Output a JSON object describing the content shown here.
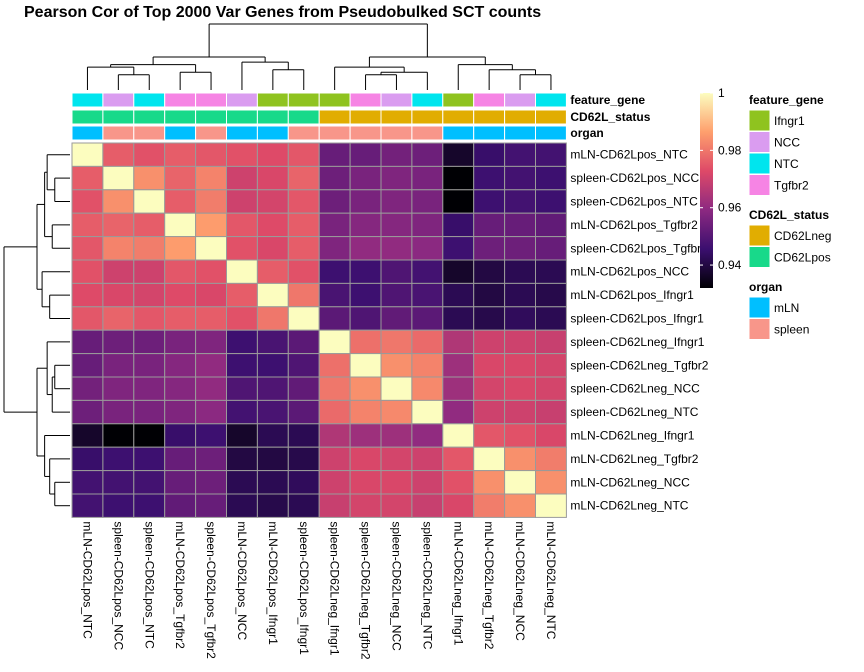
{
  "chart_data": {
    "type": "heatmap",
    "title": "Pearson Cor of Top 2000 Var Genes from Pseudobulked SCT counts",
    "samples": [
      "mLN-CD62Lpos_NTC",
      "spleen-CD62Lpos_NCC",
      "spleen-CD62Lpos_NTC",
      "mLN-CD62Lpos_Tgfbr2",
      "spleen-CD62Lpos_Tgfbr2",
      "mLN-CD62Lpos_NCC",
      "mLN-CD62Lpos_Ifngr1",
      "spleen-CD62Lpos_Ifngr1",
      "spleen-CD62Lneg_Ifngr1",
      "spleen-CD62Lneg_Tgfbr2",
      "spleen-CD62Lneg_NCC",
      "spleen-CD62Lneg_NTC",
      "mLN-CD62Lneg_Ifngr1",
      "mLN-CD62Lneg_Tgfbr2",
      "mLN-CD62Lneg_NCC",
      "mLN-CD62Lneg_NTC"
    ],
    "values": [
      [
        1.0,
        0.976,
        0.974,
        0.976,
        0.975,
        0.974,
        0.973,
        0.975,
        0.953,
        0.953,
        0.955,
        0.954,
        0.937,
        0.945,
        0.947,
        0.947
      ],
      [
        0.976,
        1.0,
        0.984,
        0.977,
        0.982,
        0.97,
        0.972,
        0.977,
        0.954,
        0.956,
        0.957,
        0.956,
        0.932,
        0.946,
        0.947,
        0.946
      ],
      [
        0.974,
        0.984,
        1.0,
        0.976,
        0.981,
        0.97,
        0.971,
        0.975,
        0.954,
        0.956,
        0.957,
        0.956,
        0.932,
        0.946,
        0.947,
        0.946
      ],
      [
        0.976,
        0.977,
        0.976,
        1.0,
        0.986,
        0.975,
        0.973,
        0.976,
        0.956,
        0.958,
        0.958,
        0.957,
        0.945,
        0.953,
        0.953,
        0.952
      ],
      [
        0.975,
        0.982,
        0.981,
        0.986,
        1.0,
        0.974,
        0.972,
        0.976,
        0.957,
        0.96,
        0.96,
        0.959,
        0.946,
        0.954,
        0.954,
        0.953
      ],
      [
        0.974,
        0.97,
        0.97,
        0.975,
        0.974,
        1.0,
        0.976,
        0.974,
        0.946,
        0.946,
        0.949,
        0.947,
        0.937,
        0.94,
        0.942,
        0.942
      ],
      [
        0.973,
        0.972,
        0.971,
        0.973,
        0.972,
        0.976,
        1.0,
        0.98,
        0.948,
        0.946,
        0.949,
        0.948,
        0.942,
        0.94,
        0.942,
        0.941
      ],
      [
        0.975,
        0.977,
        0.975,
        0.976,
        0.976,
        0.974,
        0.98,
        1.0,
        0.951,
        0.949,
        0.952,
        0.951,
        0.942,
        0.941,
        0.943,
        0.942
      ],
      [
        0.953,
        0.954,
        0.954,
        0.956,
        0.957,
        0.946,
        0.948,
        0.951,
        1.0,
        0.979,
        0.98,
        0.978,
        0.965,
        0.97,
        0.97,
        0.969
      ],
      [
        0.953,
        0.956,
        0.956,
        0.958,
        0.96,
        0.946,
        0.946,
        0.949,
        0.979,
        1.0,
        0.984,
        0.982,
        0.962,
        0.972,
        0.972,
        0.971
      ],
      [
        0.955,
        0.957,
        0.957,
        0.958,
        0.96,
        0.949,
        0.949,
        0.952,
        0.98,
        0.984,
        1.0,
        0.983,
        0.962,
        0.971,
        0.972,
        0.971
      ],
      [
        0.954,
        0.956,
        0.956,
        0.957,
        0.959,
        0.947,
        0.948,
        0.951,
        0.978,
        0.982,
        0.983,
        1.0,
        0.96,
        0.97,
        0.97,
        0.969
      ],
      [
        0.937,
        0.932,
        0.932,
        0.945,
        0.946,
        0.937,
        0.942,
        0.942,
        0.965,
        0.962,
        0.962,
        0.96,
        1.0,
        0.975,
        0.974,
        0.972
      ],
      [
        0.945,
        0.946,
        0.946,
        0.953,
        0.954,
        0.94,
        0.94,
        0.941,
        0.97,
        0.972,
        0.971,
        0.97,
        0.975,
        1.0,
        0.984,
        0.981
      ],
      [
        0.947,
        0.947,
        0.947,
        0.953,
        0.954,
        0.942,
        0.942,
        0.943,
        0.97,
        0.972,
        0.972,
        0.97,
        0.974,
        0.984,
        1.0,
        0.984
      ],
      [
        0.947,
        0.946,
        0.946,
        0.952,
        0.953,
        0.942,
        0.941,
        0.942,
        0.969,
        0.971,
        0.971,
        0.969,
        0.972,
        0.981,
        0.984,
        1.0
      ]
    ],
    "color_range": [
      0.932,
      1.0
    ],
    "color_scale": [
      "#000004",
      "#3b0f6f",
      "#8c2981",
      "#de4968",
      "#fe9f6d",
      "#fcfdbf"
    ],
    "colorbar_ticks": [
      "1",
      "0.98",
      "0.96",
      "0.94"
    ],
    "colorbar_tick_values": [
      1.0,
      0.98,
      0.96,
      0.94
    ],
    "annotation_rows": [
      "feature_gene",
      "CD62L_status",
      "organ"
    ],
    "annotations": {
      "feature_gene": [
        "NTC",
        "NCC",
        "NTC",
        "Tgfbr2",
        "Tgfbr2",
        "NCC",
        "Ifngr1",
        "Ifngr1",
        "Ifngr1",
        "Tgfbr2",
        "NCC",
        "NTC",
        "Ifngr1",
        "Tgfbr2",
        "NCC",
        "NTC"
      ],
      "CD62L_status": [
        "CD62Lpos",
        "CD62Lpos",
        "CD62Lpos",
        "CD62Lpos",
        "CD62Lpos",
        "CD62Lpos",
        "CD62Lpos",
        "CD62Lpos",
        "CD62Lneg",
        "CD62Lneg",
        "CD62Lneg",
        "CD62Lneg",
        "CD62Lneg",
        "CD62Lneg",
        "CD62Lneg",
        "CD62Lneg"
      ],
      "organ": [
        "mLN",
        "spleen",
        "spleen",
        "mLN",
        "spleen",
        "mLN",
        "mLN",
        "spleen",
        "spleen",
        "spleen",
        "spleen",
        "spleen",
        "mLN",
        "mLN",
        "mLN",
        "mLN"
      ]
    },
    "legend": [
      {
        "title": "feature_gene",
        "items": [
          {
            "label": "Ifngr1",
            "color": "#8fc31f"
          },
          {
            "label": "NCC",
            "color": "#da9cf0"
          },
          {
            "label": "NTC",
            "color": "#00e5ee"
          },
          {
            "label": "Tgfbr2",
            "color": "#f684e4"
          }
        ]
      },
      {
        "title": "CD62L_status",
        "items": [
          {
            "label": "CD62Lneg",
            "color": "#e1ad01"
          },
          {
            "label": "CD62Lpos",
            "color": "#18d98a"
          }
        ]
      },
      {
        "title": "organ",
        "items": [
          {
            "label": "mLN",
            "color": "#00bfff"
          },
          {
            "label": "spleen",
            "color": "#f8968a"
          }
        ]
      }
    ],
    "row_dendrogram": [
      [
        1,
        2,
        0.6
      ],
      [
        3,
        4,
        0.7
      ],
      [
        6,
        7,
        0.8
      ],
      [
        0,
        "a",
        0.9
      ],
      [
        "b",
        "d",
        1.0
      ],
      [
        5,
        "c",
        1.1
      ],
      [
        "e",
        "f",
        1.3
      ],
      [
        9,
        10,
        0.6
      ],
      [
        11,
        "h",
        0.7
      ],
      [
        8,
        "i",
        0.9
      ],
      [
        14,
        15,
        0.6
      ],
      [
        13,
        "k",
        0.8
      ],
      [
        12,
        "l",
        1.0
      ],
      [
        "j",
        "m",
        1.3
      ],
      [
        "g",
        "n",
        2.6
      ]
    ]
  }
}
